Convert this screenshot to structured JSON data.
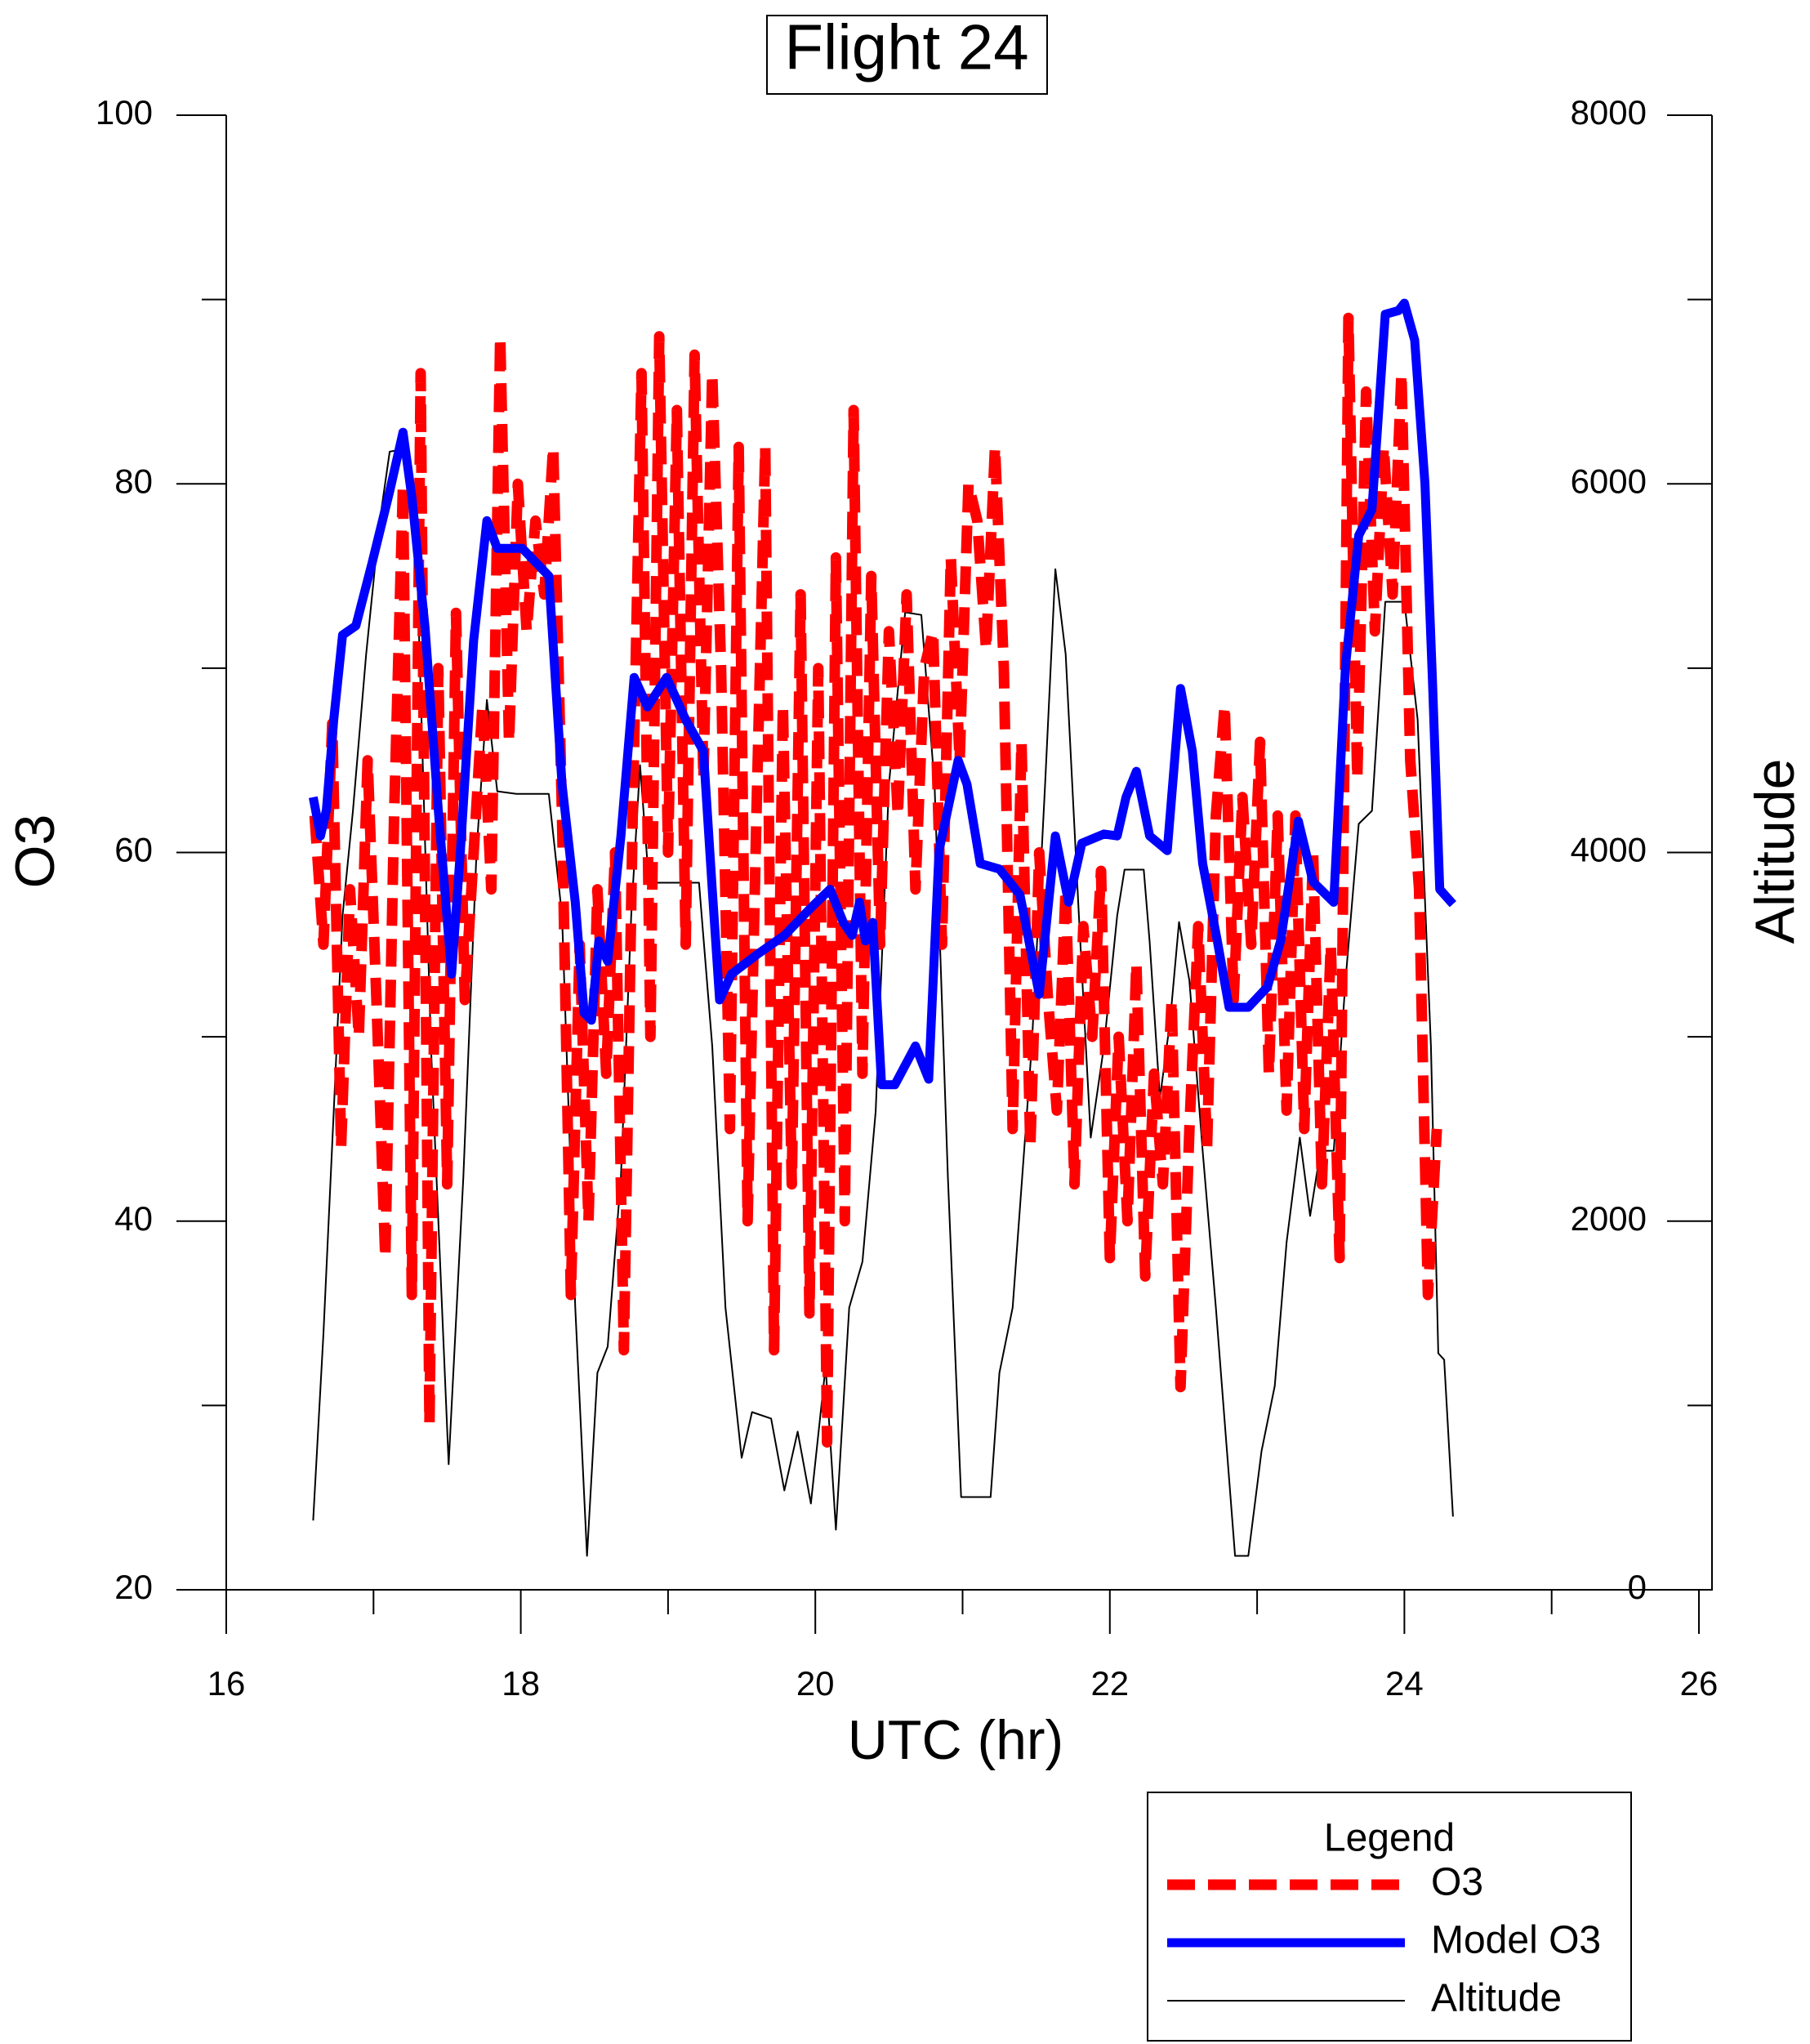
{
  "chart_data": {
    "type": "line",
    "title": "Flight 24",
    "xlabel": "UTC (hr)",
    "ylabel": "O3",
    "y2label": "Altitude",
    "xlim": [
      16,
      26
    ],
    "xticks": [
      16,
      18,
      20,
      22,
      24,
      26
    ],
    "ylim": [
      20,
      100
    ],
    "yticks": [
      20,
      40,
      60,
      80,
      100
    ],
    "y2lim": [
      0,
      8000
    ],
    "y2ticks": [
      0,
      2000,
      4000,
      6000,
      8000
    ],
    "legend_title": "Legend",
    "series": [
      {
        "name": "O3",
        "color": "#ff0000",
        "style": "dashed",
        "x": [
          16.6,
          16.66,
          16.72,
          16.78,
          16.84,
          16.9,
          16.96,
          17.02,
          17.08,
          17.14,
          17.2,
          17.26,
          17.32,
          17.38,
          17.44,
          17.5,
          17.56,
          17.62,
          17.68,
          17.74,
          17.8,
          17.86,
          17.92,
          17.98,
          18.04,
          18.1,
          18.16,
          18.22,
          18.28,
          18.34,
          18.4,
          18.46,
          18.52,
          18.58,
          18.64,
          18.7,
          18.76,
          18.82,
          18.88,
          18.94,
          19.0,
          19.06,
          19.12,
          19.18,
          19.24,
          19.3,
          19.36,
          19.42,
          19.48,
          19.54,
          19.6,
          19.66,
          19.72,
          19.78,
          19.84,
          19.9,
          19.96,
          20.02,
          20.08,
          20.14,
          20.2,
          20.26,
          20.32,
          20.38,
          20.44,
          20.5,
          20.56,
          20.62,
          20.68,
          20.74,
          20.8,
          20.86,
          20.92,
          20.98,
          21.04,
          21.1,
          21.16,
          21.22,
          21.28,
          21.34,
          21.4,
          21.46,
          21.52,
          21.58,
          21.64,
          21.7,
          21.76,
          21.82,
          21.88,
          21.94,
          22.0,
          22.06,
          22.12,
          22.18,
          22.24,
          22.3,
          22.36,
          22.42,
          22.48,
          22.54,
          22.6,
          22.66,
          22.72,
          22.78,
          22.84,
          22.9,
          22.96,
          23.02,
          23.08,
          23.14,
          23.2,
          23.26,
          23.32,
          23.38,
          23.44,
          23.5,
          23.56,
          23.62,
          23.68,
          23.74,
          23.8,
          23.86,
          23.92,
          23.98,
          24.04,
          24.1,
          24.16,
          24.22
        ],
        "values": [
          62,
          55,
          67,
          44,
          58,
          50,
          65,
          52,
          38,
          62,
          80,
          36,
          86,
          29,
          70,
          42,
          73,
          52,
          60,
          68,
          58,
          88,
          66,
          80,
          72,
          78,
          74,
          82,
          62,
          36,
          55,
          40,
          58,
          48,
          60,
          33,
          62,
          86,
          50,
          88,
          60,
          84,
          55,
          87,
          64,
          86,
          70,
          45,
          82,
          40,
          62,
          82,
          33,
          68,
          42,
          74,
          35,
          70,
          28,
          76,
          40,
          84,
          48,
          75,
          55,
          72,
          62,
          74,
          58,
          70,
          72,
          55,
          76,
          65,
          80,
          78,
          71,
          82,
          70,
          45,
          66,
          44,
          60,
          52,
          46,
          58,
          42,
          56,
          50,
          59,
          38,
          50,
          40,
          54,
          37,
          48,
          42,
          52,
          31,
          45,
          56,
          44,
          62,
          68,
          52,
          63,
          55,
          66,
          48,
          62,
          46,
          62,
          45,
          60,
          42,
          55,
          38,
          89,
          64,
          85,
          72,
          82,
          74,
          86,
          65,
          58,
          36,
          45
        ]
      },
      {
        "name": "Model O3",
        "color": "#0000ff",
        "x": [
          16.59,
          16.64,
          16.68,
          16.73,
          16.79,
          16.88,
          16.99,
          17.11,
          17.2,
          17.26,
          17.35,
          17.44,
          17.53,
          17.59,
          17.68,
          17.77,
          17.84,
          18.01,
          18.19,
          18.28,
          18.37,
          18.43,
          18.48,
          18.53,
          18.59,
          18.68,
          18.77,
          18.86,
          18.99,
          19.12,
          19.24,
          19.3,
          19.35,
          19.43,
          19.61,
          19.79,
          19.97,
          20.1,
          20.19,
          20.25,
          20.3,
          20.34,
          20.39,
          20.45,
          20.54,
          20.68,
          20.77,
          20.84,
          20.97,
          21.03,
          21.12,
          21.25,
          21.39,
          21.52,
          21.63,
          21.72,
          21.81,
          21.96,
          22.05,
          22.11,
          22.18,
          22.27,
          22.39,
          22.48,
          22.56,
          22.63,
          22.73,
          22.81,
          22.94,
          23.07,
          23.16,
          23.28,
          23.38,
          23.52,
          23.6,
          23.69,
          23.78,
          23.87,
          23.96,
          24.0,
          24.07,
          24.14,
          24.19,
          24.24,
          24.33
        ],
        "values": [
          63.0,
          60.9,
          62.3,
          67.2,
          71.8,
          72.3,
          75.7,
          79.6,
          82.8,
          79.3,
          72.2,
          62.3,
          53.4,
          60.1,
          71.5,
          78.0,
          76.5,
          76.5,
          75.0,
          63.7,
          57.3,
          51.3,
          50.9,
          55.2,
          54.1,
          60.9,
          69.5,
          67.9,
          69.5,
          67.2,
          65.5,
          58.0,
          52.0,
          53.4,
          54.5,
          55.5,
          57.0,
          58.0,
          56.2,
          55.5,
          57.3,
          55.2,
          56.2,
          47.4,
          47.4,
          49.5,
          47.7,
          60.1,
          65.0,
          63.7,
          59.4,
          59.1,
          57.7,
          52.3,
          60.9,
          57.3,
          60.5,
          61.0,
          60.9,
          63.0,
          64.4,
          60.9,
          60.1,
          68.9,
          65.5,
          59.4,
          55.2,
          51.6,
          51.6,
          52.7,
          55.2,
          61.7,
          58.4,
          57.3,
          70.1,
          77.2,
          78.6,
          89.2,
          89.4,
          89.8,
          87.8,
          80.0,
          69.4,
          58.0,
          57.2
        ]
      },
      {
        "name": "Altitude",
        "color": "#000000",
        "axis": "y2",
        "x": [
          16.59,
          16.66,
          16.73,
          16.79,
          16.86,
          16.95,
          17.04,
          17.11,
          17.22,
          17.3,
          17.39,
          17.51,
          17.61,
          17.7,
          17.77,
          17.84,
          17.97,
          18.19,
          18.28,
          18.37,
          18.45,
          18.52,
          18.59,
          18.68,
          18.75,
          18.81,
          18.87,
          18.95,
          19.21,
          19.3,
          19.39,
          19.5,
          19.57,
          19.7,
          19.79,
          19.88,
          19.97,
          20.07,
          20.14,
          20.23,
          20.32,
          20.41,
          20.5,
          20.61,
          20.72,
          20.81,
          20.9,
          20.99,
          21.08,
          21.19,
          21.25,
          21.34,
          21.47,
          21.56,
          21.63,
          21.7,
          21.79,
          21.87,
          21.96,
          22.05,
          22.1,
          22.23,
          22.27,
          22.34,
          22.41,
          22.47,
          22.54,
          22.63,
          22.72,
          22.85,
          22.94,
          23.03,
          23.12,
          23.2,
          23.29,
          23.36,
          23.43,
          23.52,
          23.6,
          23.69,
          23.78,
          23.87,
          24.0,
          24.09,
          24.18,
          24.23,
          24.27,
          24.33
        ],
        "values": [
          376,
          1390,
          2595,
          3658,
          4226,
          5076,
          5785,
          6175,
          6190,
          5431,
          2949,
          681,
          2240,
          4013,
          4828,
          4332,
          4318,
          4318,
          3658,
          1531,
          184,
          1177,
          1319,
          2240,
          3658,
          4474,
          3836,
          3836,
          3836,
          2949,
          1531,
          716,
          964,
          929,
          539,
          858,
          468,
          1212,
          326,
          1531,
          1780,
          2595,
          4367,
          5303,
          5289,
          4367,
          2240,
          503,
          503,
          503,
          1177,
          1531,
          2949,
          4367,
          5537,
          5076,
          3658,
          2453,
          2949,
          3658,
          3907,
          3907,
          3517,
          2666,
          3091,
          3623,
          3304,
          2382,
          1531,
          184,
          184,
          752,
          1106,
          1886,
          2453,
          2028,
          2382,
          2382,
          3304,
          4155,
          4226,
          5360,
          5360,
          4722,
          2949,
          1283,
          1248,
          397
        ]
      }
    ]
  }
}
